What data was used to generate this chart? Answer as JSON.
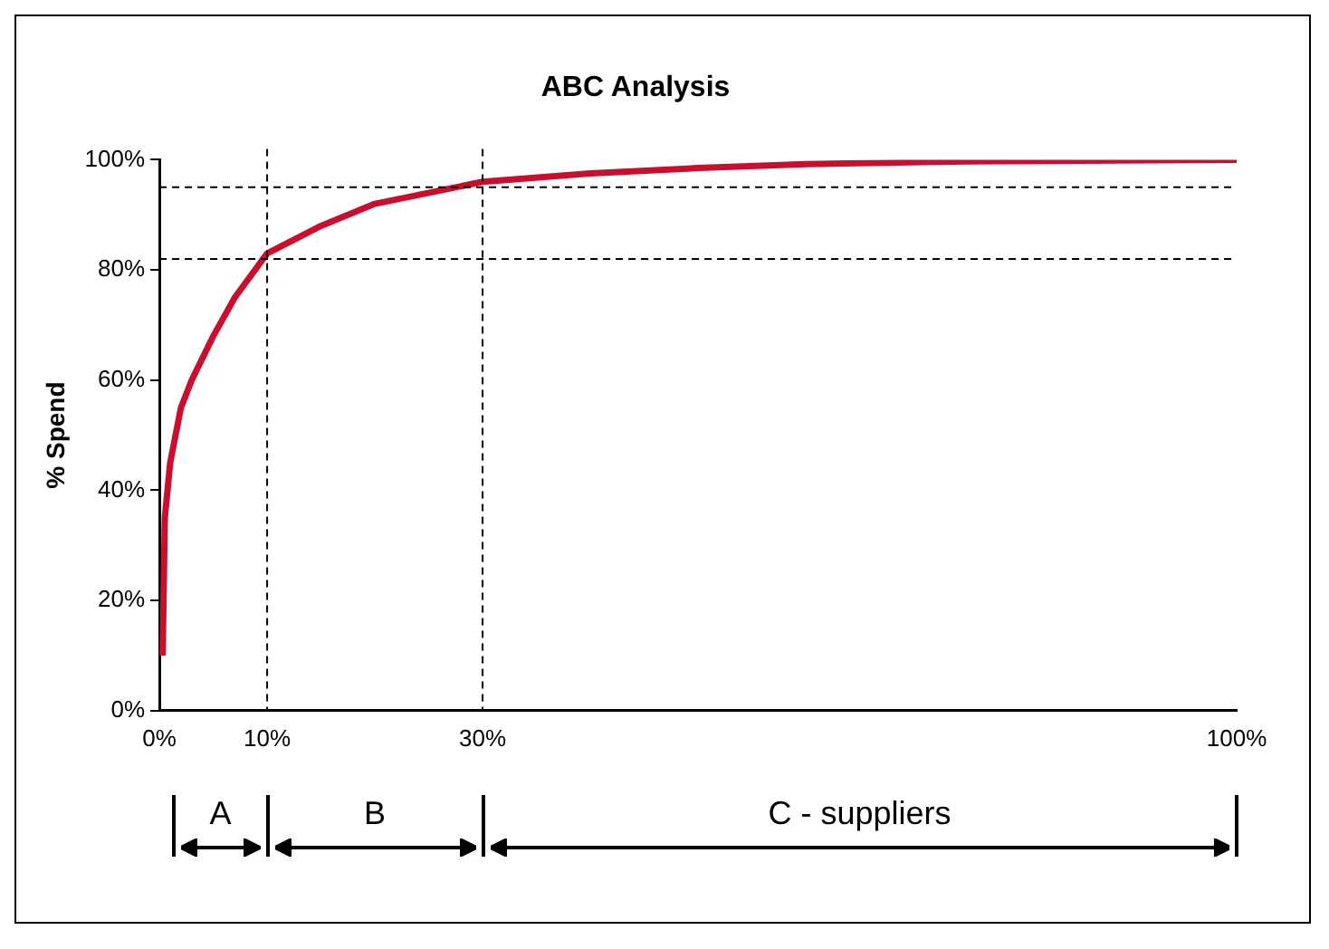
{
  "chart_data": {
    "type": "line",
    "title": "ABC Analysis",
    "ylabel": "% Spend",
    "series": [
      {
        "color": "#c8102e",
        "x": [
          0.3,
          0.5,
          1,
          2,
          3,
          5,
          7,
          10,
          15,
          20,
          30,
          40,
          50,
          60,
          75,
          100
        ],
        "values": [
          10,
          35,
          45,
          55,
          60,
          68,
          75,
          83,
          88,
          92,
          96,
          97.5,
          98.5,
          99.2,
          99.7,
          100
        ]
      }
    ],
    "xlim": [
      0,
      100
    ],
    "xticks": [
      {
        "value": 0,
        "label": "0%"
      },
      {
        "value": 10,
        "label": "10%"
      },
      {
        "value": 30,
        "label": "30%"
      },
      {
        "value": 100,
        "label": "100%"
      }
    ],
    "ylim": [
      0,
      100
    ],
    "yticks": [
      {
        "value": 0,
        "label": "0%"
      },
      {
        "value": 20,
        "label": "20%"
      },
      {
        "value": 40,
        "label": "40%"
      },
      {
        "value": 60,
        "label": "60%"
      },
      {
        "value": 80,
        "label": "80%"
      },
      {
        "value": 100,
        "label": "100%"
      }
    ],
    "grid": false,
    "legend": false,
    "marker": "none",
    "line_style": "solid",
    "ref_lines": [
      {
        "axis": "x",
        "value": 10,
        "line_style": "dashed",
        "color": "#000000"
      },
      {
        "axis": "x",
        "value": 30,
        "line_style": "dashed",
        "color": "#000000"
      },
      {
        "axis": "y",
        "value": 82,
        "line_style": "dashed",
        "color": "#000000"
      },
      {
        "axis": "y",
        "value": 95,
        "line_style": "dashed",
        "color": "#000000"
      }
    ],
    "annotations": [
      "A",
      "B",
      "C - suppliers"
    ]
  }
}
